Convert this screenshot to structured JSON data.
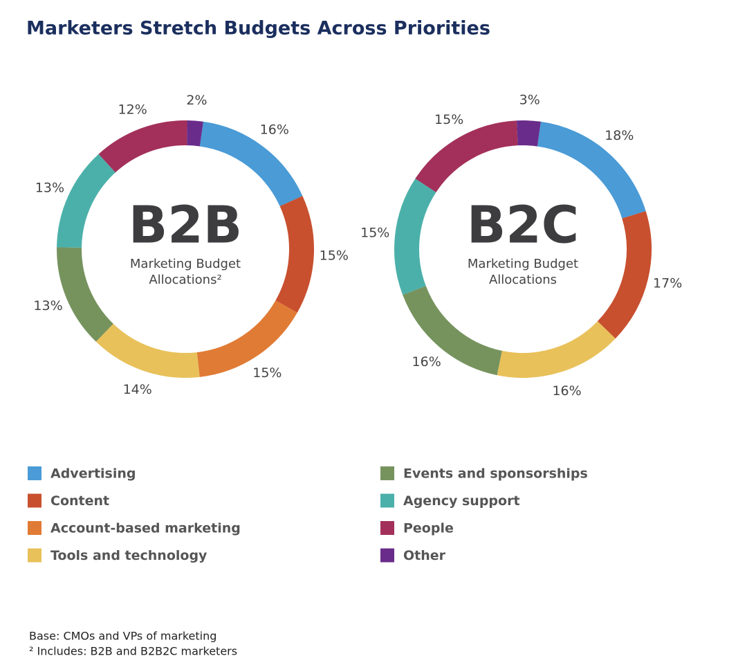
{
  "title": "Marketers Stretch Budgets Across Priorities",
  "chart_data": [
    {
      "type": "donut",
      "center_title": "B2B",
      "subtitle": [
        "Marketing Budget",
        "Allocations²"
      ],
      "categories": [
        "Advertising",
        "Content",
        "Account-based marketing",
        "Tools and technology",
        "Events and sponsorships",
        "Agency support",
        "People",
        "Other"
      ],
      "values": [
        16,
        15,
        15,
        14,
        13,
        13,
        12,
        2
      ],
      "value_labels": [
        "16%",
        "15%",
        "15%",
        "14%",
        "13%",
        "13%",
        "12%",
        "2%"
      ],
      "colors": [
        "#4a9bd6",
        "#c8502f",
        "#e07b35",
        "#e8c15a",
        "#76935e",
        "#4cb0aa",
        "#a3305a",
        "#6a2c8a"
      ]
    },
    {
      "type": "donut",
      "center_title": "B2C",
      "subtitle": [
        "Marketing Budget",
        "Allocations"
      ],
      "categories": [
        "Advertising",
        "Content",
        "Tools and technology",
        "Events and sponsorships",
        "Agency support",
        "People",
        "Other"
      ],
      "values": [
        18,
        17,
        16,
        16,
        15,
        15,
        3
      ],
      "value_labels": [
        "18%",
        "17%",
        "16%",
        "16%",
        "15%",
        "15%",
        "3%"
      ],
      "colors": [
        "#4a9bd6",
        "#c8502f",
        "#e8c15a",
        "#76935e",
        "#4cb0aa",
        "#a3305a",
        "#6a2c8a"
      ]
    }
  ],
  "footnotes": [
    "Base: CMOs and VPs of marketing",
    "² Includes: B2B and B2B2C marketers"
  ]
}
